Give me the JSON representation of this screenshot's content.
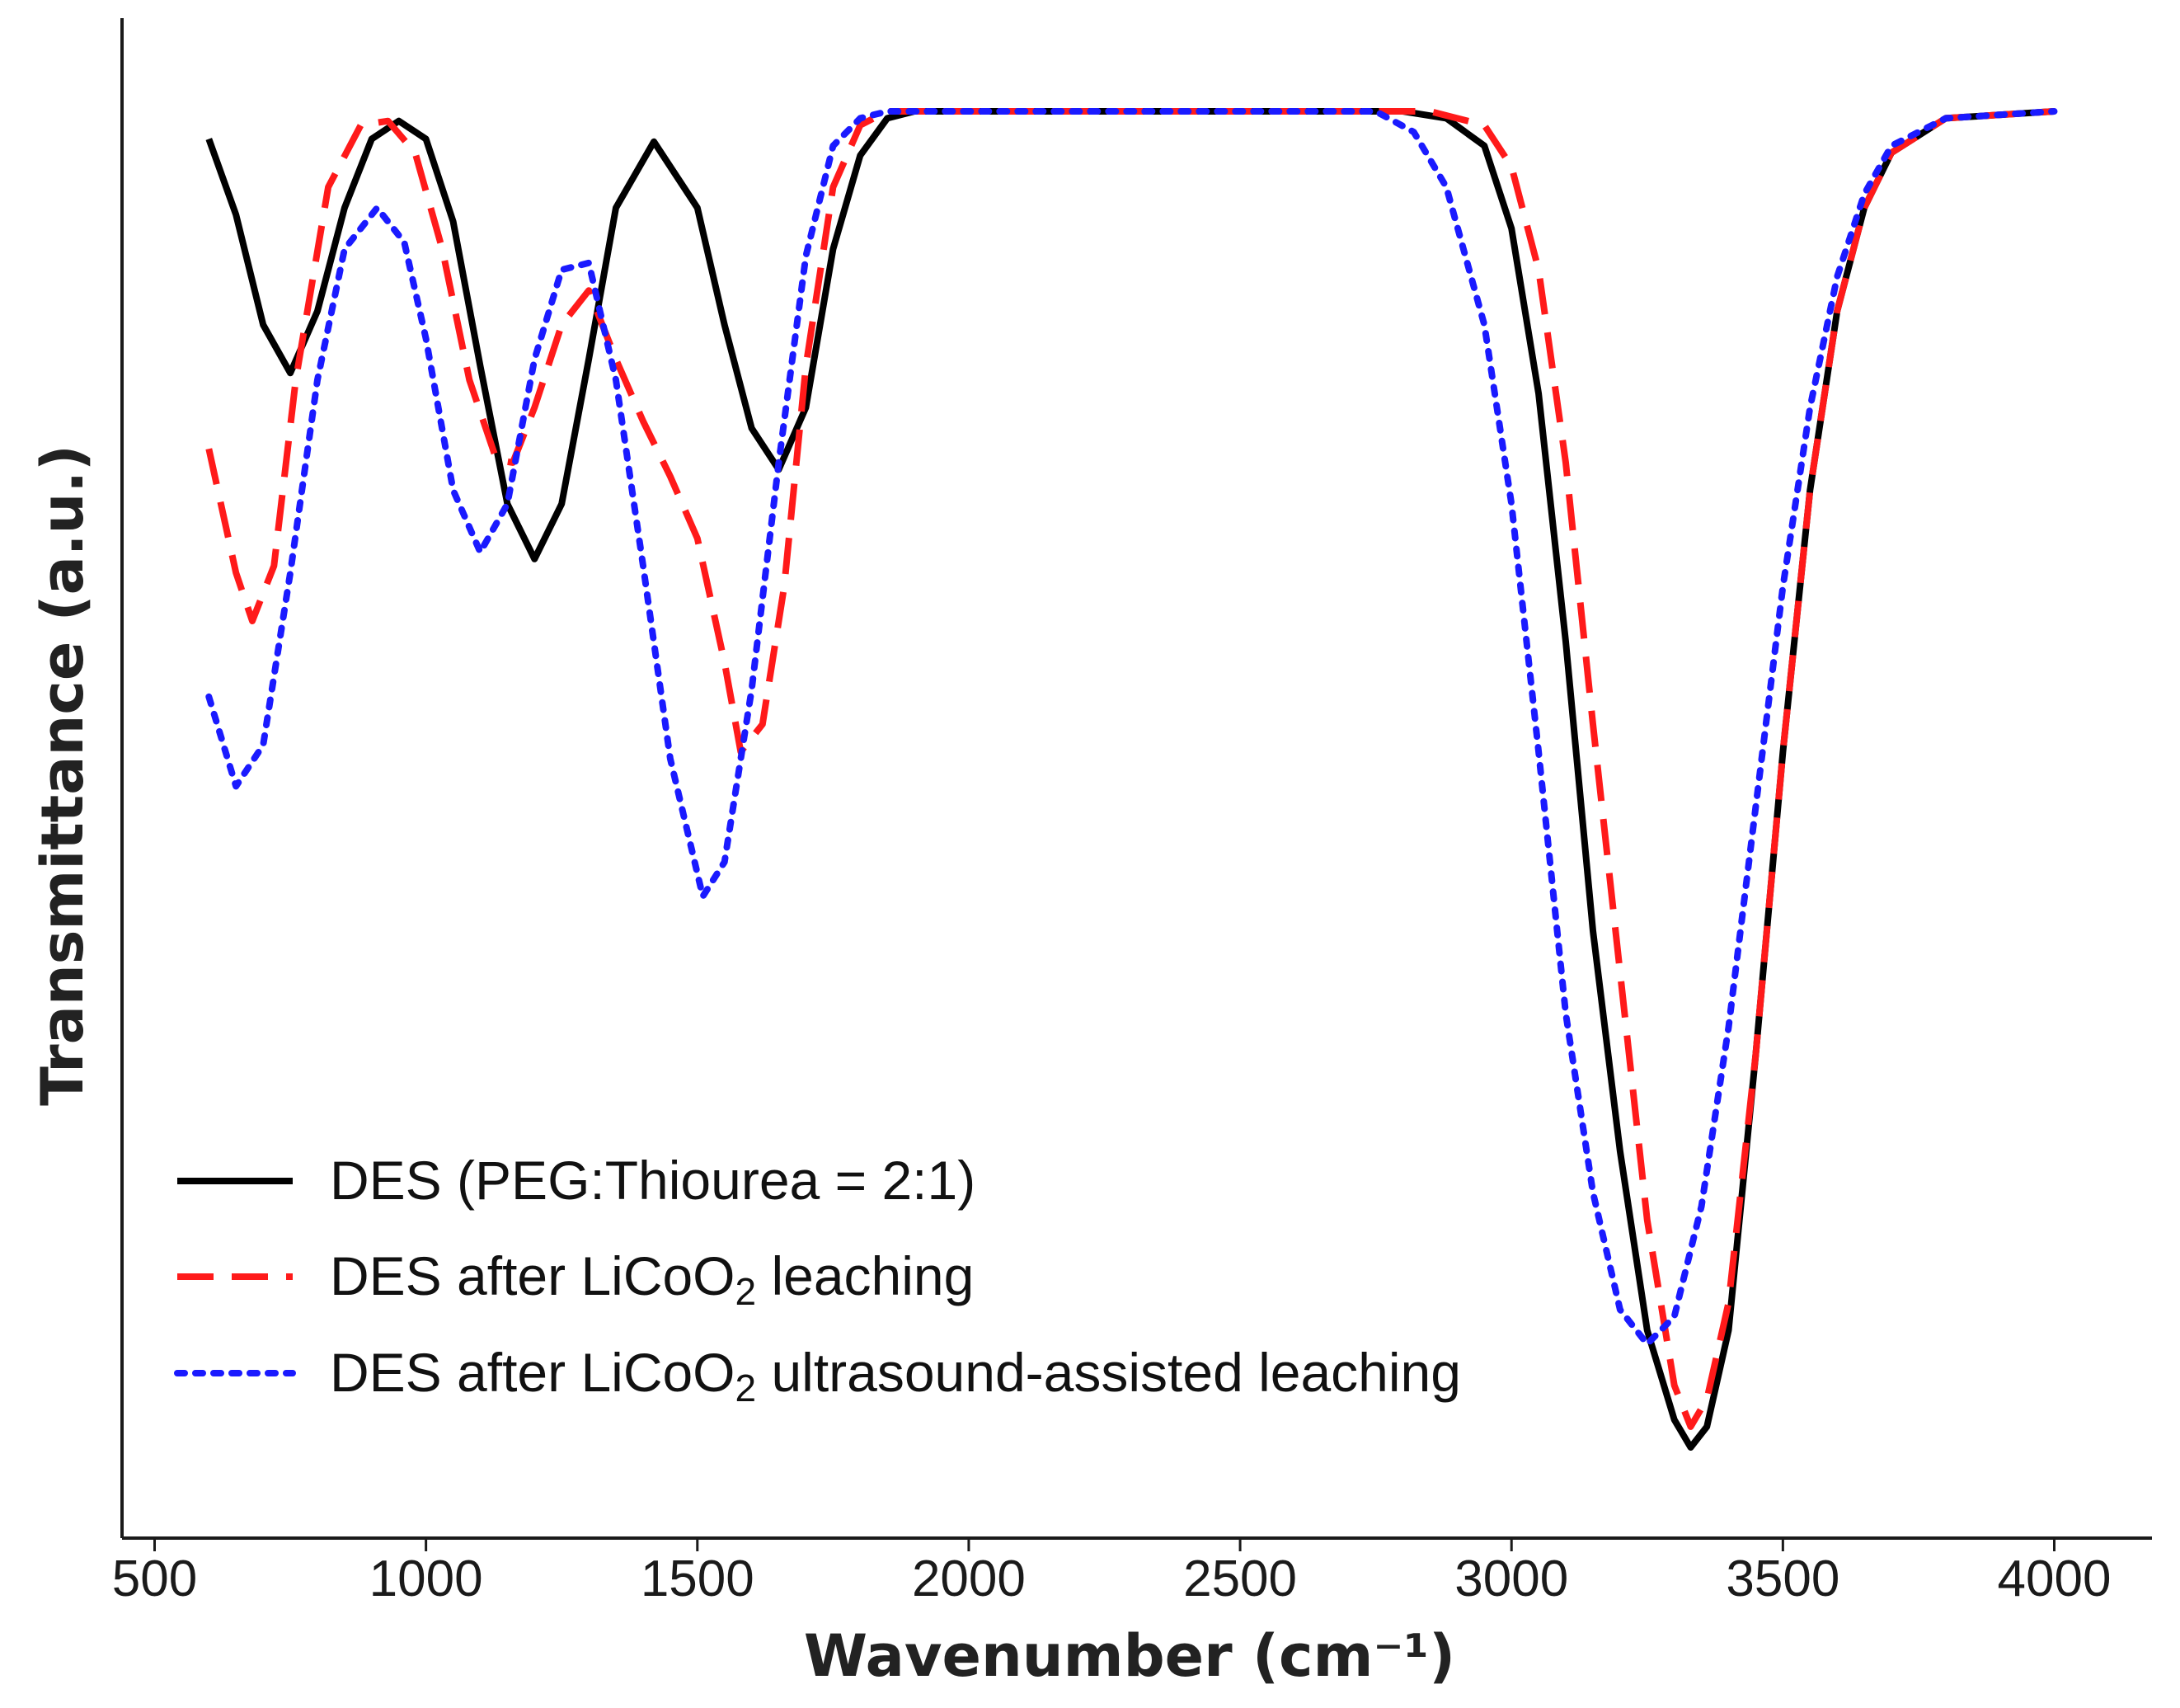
{
  "chart_data": {
    "type": "line",
    "title": "",
    "xlabel": "Wavenumber (cm⁻¹)",
    "ylabel": "Transmittance (a.u.)",
    "xlim": [
      440,
      4180
    ],
    "ylim": [
      0,
      1
    ],
    "xticks": [
      500,
      1000,
      1500,
      2000,
      2500,
      3000,
      3500,
      4000
    ],
    "yticks": [],
    "grid": false,
    "legend_position": "bottom-left",
    "series": [
      {
        "name": "DES (PEG:Thiourea = 2:1)",
        "legend_parts": [
          "DES (PEG:Thiourea = 2:1)"
        ],
        "color": "#000000",
        "style": "solid",
        "points": [
          [
            600,
            0.965
          ],
          [
            650,
            0.91
          ],
          [
            700,
            0.83
          ],
          [
            750,
            0.795
          ],
          [
            800,
            0.84
          ],
          [
            850,
            0.915
          ],
          [
            900,
            0.965
          ],
          [
            950,
            0.978
          ],
          [
            1000,
            0.965
          ],
          [
            1050,
            0.905
          ],
          [
            1100,
            0.8
          ],
          [
            1150,
            0.7
          ],
          [
            1200,
            0.66
          ],
          [
            1250,
            0.7
          ],
          [
            1300,
            0.805
          ],
          [
            1350,
            0.915
          ],
          [
            1420,
            0.963
          ],
          [
            1500,
            0.915
          ],
          [
            1550,
            0.83
          ],
          [
            1600,
            0.755
          ],
          [
            1650,
            0.725
          ],
          [
            1700,
            0.77
          ],
          [
            1750,
            0.885
          ],
          [
            1800,
            0.953
          ],
          [
            1850,
            0.98
          ],
          [
            1900,
            0.985
          ],
          [
            2000,
            0.985
          ],
          [
            2500,
            0.985
          ],
          [
            2800,
            0.985
          ],
          [
            2880,
            0.98
          ],
          [
            2950,
            0.96
          ],
          [
            3000,
            0.9
          ],
          [
            3050,
            0.78
          ],
          [
            3100,
            0.6
          ],
          [
            3150,
            0.39
          ],
          [
            3200,
            0.23
          ],
          [
            3250,
            0.1
          ],
          [
            3300,
            0.035
          ],
          [
            3330,
            0.015
          ],
          [
            3360,
            0.03
          ],
          [
            3400,
            0.1
          ],
          [
            3450,
            0.3
          ],
          [
            3500,
            0.52
          ],
          [
            3550,
            0.71
          ],
          [
            3600,
            0.84
          ],
          [
            3650,
            0.915
          ],
          [
            3700,
            0.955
          ],
          [
            3800,
            0.98
          ],
          [
            4000,
            0.985
          ]
        ]
      },
      {
        "name": "DES after LiCoO2 leaching",
        "legend_parts": [
          "DES after LiCoO",
          "2",
          " leaching"
        ],
        "color": "#ff1a1a",
        "style": "dashed",
        "points": [
          [
            600,
            0.74
          ],
          [
            650,
            0.65
          ],
          [
            680,
            0.615
          ],
          [
            720,
            0.655
          ],
          [
            760,
            0.79
          ],
          [
            820,
            0.93
          ],
          [
            880,
            0.975
          ],
          [
            930,
            0.978
          ],
          [
            980,
            0.955
          ],
          [
            1030,
            0.885
          ],
          [
            1080,
            0.79
          ],
          [
            1130,
            0.732
          ],
          [
            1160,
            0.73
          ],
          [
            1200,
            0.77
          ],
          [
            1250,
            0.83
          ],
          [
            1300,
            0.855
          ],
          [
            1350,
            0.805
          ],
          [
            1400,
            0.76
          ],
          [
            1450,
            0.72
          ],
          [
            1500,
            0.675
          ],
          [
            1550,
            0.585
          ],
          [
            1580,
            0.52
          ],
          [
            1620,
            0.54
          ],
          [
            1660,
            0.64
          ],
          [
            1700,
            0.8
          ],
          [
            1750,
            0.93
          ],
          [
            1800,
            0.975
          ],
          [
            1850,
            0.985
          ],
          [
            1900,
            0.985
          ],
          [
            2500,
            0.985
          ],
          [
            2850,
            0.985
          ],
          [
            2950,
            0.975
          ],
          [
            3000,
            0.945
          ],
          [
            3050,
            0.87
          ],
          [
            3100,
            0.73
          ],
          [
            3150,
            0.54
          ],
          [
            3200,
            0.36
          ],
          [
            3250,
            0.18
          ],
          [
            3300,
            0.06
          ],
          [
            3330,
            0.03
          ],
          [
            3360,
            0.05
          ],
          [
            3400,
            0.12
          ],
          [
            3450,
            0.3
          ],
          [
            3500,
            0.52
          ],
          [
            3550,
            0.71
          ],
          [
            3600,
            0.84
          ],
          [
            3650,
            0.915
          ],
          [
            3700,
            0.955
          ],
          [
            3800,
            0.98
          ],
          [
            4000,
            0.985
          ]
        ]
      },
      {
        "name": "DES after LiCoO2 ultrasound-assisted leaching",
        "legend_parts": [
          "DES after LiCoO",
          "2",
          " ultrasound-assisted leaching"
        ],
        "color": "#1a1aff",
        "style": "dotted",
        "points": [
          [
            600,
            0.56
          ],
          [
            650,
            0.495
          ],
          [
            700,
            0.525
          ],
          [
            750,
            0.65
          ],
          [
            800,
            0.79
          ],
          [
            850,
            0.885
          ],
          [
            910,
            0.915
          ],
          [
            960,
            0.89
          ],
          [
            1000,
            0.82
          ],
          [
            1050,
            0.71
          ],
          [
            1100,
            0.665
          ],
          [
            1150,
            0.7
          ],
          [
            1200,
            0.805
          ],
          [
            1250,
            0.87
          ],
          [
            1300,
            0.875
          ],
          [
            1350,
            0.79
          ],
          [
            1400,
            0.655
          ],
          [
            1450,
            0.515
          ],
          [
            1510,
            0.415
          ],
          [
            1550,
            0.44
          ],
          [
            1600,
            0.565
          ],
          [
            1650,
            0.73
          ],
          [
            1700,
            0.88
          ],
          [
            1750,
            0.96
          ],
          [
            1800,
            0.98
          ],
          [
            1850,
            0.985
          ],
          [
            2000,
            0.985
          ],
          [
            2500,
            0.985
          ],
          [
            2750,
            0.985
          ],
          [
            2820,
            0.97
          ],
          [
            2880,
            0.93
          ],
          [
            2950,
            0.83
          ],
          [
            3000,
            0.7
          ],
          [
            3050,
            0.52
          ],
          [
            3100,
            0.33
          ],
          [
            3150,
            0.2
          ],
          [
            3200,
            0.115
          ],
          [
            3250,
            0.09
          ],
          [
            3300,
            0.11
          ],
          [
            3350,
            0.19
          ],
          [
            3400,
            0.32
          ],
          [
            3450,
            0.48
          ],
          [
            3500,
            0.64
          ],
          [
            3550,
            0.77
          ],
          [
            3600,
            0.865
          ],
          [
            3650,
            0.925
          ],
          [
            3700,
            0.96
          ],
          [
            3800,
            0.98
          ],
          [
            4000,
            0.985
          ]
        ]
      }
    ]
  }
}
